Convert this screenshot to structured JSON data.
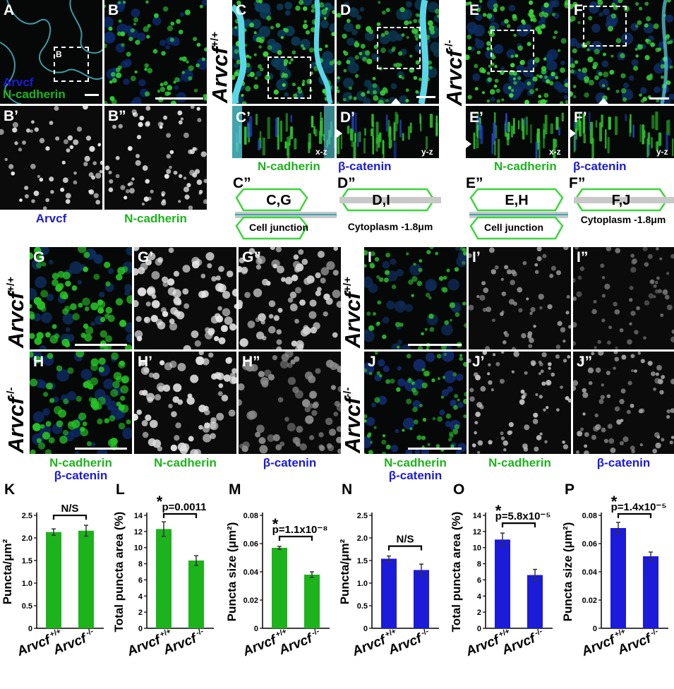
{
  "panels": {
    "A": "A",
    "B": "B",
    "B1": "B’",
    "B2": "B”",
    "C": "C",
    "D": "D",
    "E": "E",
    "F": "F",
    "C1": "C’",
    "D1": "D’",
    "E1": "E’",
    "F1": "F’",
    "C2": "C”",
    "D2": "D”",
    "E2": "E”",
    "F2": "F”",
    "G": "G",
    "G1": "G’",
    "G2": "G”",
    "H": "H",
    "H1": "H’",
    "H2": "H”",
    "I": "I",
    "I1": "I’",
    "I2": "I”",
    "J": "J",
    "J1": "J’",
    "J2": "J”",
    "K": "K",
    "L": "L",
    "M": "M",
    "N": "N",
    "O": "O",
    "P": "P"
  },
  "genotypes": {
    "base": "Arvcf",
    "wt": "+/+",
    "ko": "-/-"
  },
  "labels": {
    "arvcf": "Arvcf",
    "ncad": "N-cadherin",
    "bcat": "β-catenin",
    "inset_B": "B",
    "xz": "x-z",
    "yz": "y-z",
    "schematic": {
      "C2_box": "C,G",
      "D2_box": "D,I",
      "E2_box": "E,H",
      "F2_box": "F,J",
      "junction": "Cell junction",
      "cytoplasm": "Cytoplasm -1.8μm"
    }
  },
  "colors": {
    "green": "#1db31d",
    "blue": "#1b1bd9",
    "cyan": "#5ad7e6",
    "box_green": "#3cd63c"
  },
  "chart_data": [
    {
      "panel": "K",
      "type": "bar",
      "categories": [
        "Arvcf +/+",
        "Arvcf -/-"
      ],
      "values": [
        2.13,
        2.16
      ],
      "errors": [
        0.07,
        0.12
      ],
      "ylabel": "Puncta/μm²",
      "ylim": [
        0,
        2.5
      ],
      "yticks": [
        0,
        0.5,
        1.0,
        1.5,
        2.0,
        2.5
      ],
      "yticklabels": [
        "0",
        "0.5",
        "1.0",
        "1.5",
        "2.0",
        "2.5"
      ],
      "annotation": "N/S",
      "star": false,
      "color": "#1db31d"
    },
    {
      "panel": "L",
      "type": "bar",
      "categories": [
        "Arvcf +/+",
        "Arvcf -/-"
      ],
      "values": [
        12.3,
        8.4
      ],
      "errors": [
        0.9,
        0.6
      ],
      "ylabel": "Total puncta area (%)",
      "ylim": [
        0,
        14
      ],
      "yticks": [
        0,
        2,
        4,
        6,
        8,
        10,
        12,
        14
      ],
      "yticklabels": [
        "0",
        "2",
        "4",
        "6",
        "8",
        "10",
        "12",
        "14"
      ],
      "annotation": "p=0.0011",
      "star": true,
      "color": "#1db31d"
    },
    {
      "panel": "M",
      "type": "bar",
      "categories": [
        "Arvcf +/+",
        "Arvcf -/-"
      ],
      "values": [
        0.057,
        0.038
      ],
      "errors": [
        0.001,
        0.002
      ],
      "ylabel": "Puncta size (μm²)",
      "ylim": [
        0,
        0.08
      ],
      "yticks": [
        0,
        0.02,
        0.04,
        0.06,
        0.08
      ],
      "yticklabels": [
        "0",
        "0.02",
        "0.04",
        "0.06",
        "0.08"
      ],
      "annotation": "p=1.1x10⁻⁸",
      "star": true,
      "color": "#1db31d"
    },
    {
      "panel": "N",
      "type": "bar",
      "categories": [
        "Arvcf +/+",
        "Arvcf -/-"
      ],
      "values": [
        1.54,
        1.29
      ],
      "errors": [
        0.06,
        0.13
      ],
      "ylabel": "Puncta/μm²",
      "ylim": [
        0,
        2.5
      ],
      "yticks": [
        0,
        0.5,
        1.0,
        1.5,
        2.0,
        2.5
      ],
      "yticklabels": [
        "0",
        "0.5",
        "1.0",
        "1.5",
        "2.0",
        "2.5"
      ],
      "annotation": "N/S",
      "star": false,
      "color": "#1b1bd9"
    },
    {
      "panel": "O",
      "type": "bar",
      "categories": [
        "Arvcf +/+",
        "Arvcf -/-"
      ],
      "values": [
        11.0,
        6.6
      ],
      "errors": [
        0.8,
        0.7
      ],
      "ylabel": "Total puncta area (%)",
      "ylim": [
        0,
        14
      ],
      "yticks": [
        0,
        2,
        4,
        6,
        8,
        10,
        12,
        14
      ],
      "yticklabels": [
        "0",
        "2",
        "4",
        "6",
        "8",
        "10",
        "12",
        "14"
      ],
      "annotation": "p=5.8x10⁻⁵",
      "star": true,
      "color": "#1b1bd9"
    },
    {
      "panel": "P",
      "type": "bar",
      "categories": [
        "Arvcf +/+",
        "Arvcf -/-"
      ],
      "values": [
        0.071,
        0.051
      ],
      "errors": [
        0.004,
        0.003
      ],
      "ylabel": "Puncta size (μm²)",
      "ylim": [
        0,
        0.08
      ],
      "yticks": [
        0,
        0.02,
        0.04,
        0.06,
        0.08
      ],
      "yticklabels": [
        "0",
        "0.02",
        "0.04",
        "0.06",
        "0.08"
      ],
      "annotation": "p=1.4x10⁻⁵",
      "star": true,
      "color": "#1b1bd9"
    }
  ]
}
